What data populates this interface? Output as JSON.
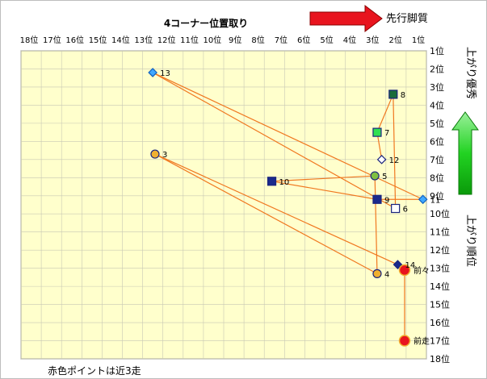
{
  "chart_data": {
    "type": "scatter",
    "title": "4コーナー位置取り",
    "x_label": "先行脚質",
    "y_label": "上がり優秀",
    "y_label_lower": "上がり順位",
    "x_ticks": [
      "18位",
      "17位",
      "16位",
      "15位",
      "14位",
      "13位",
      "12位",
      "11位",
      "10位",
      "9位",
      "8位",
      "7位",
      "6位",
      "5位",
      "4位",
      "3位",
      "2位",
      "1位"
    ],
    "y_ticks": [
      "1位",
      "2位",
      "3位",
      "4位",
      "5位",
      "6位",
      "7位",
      "8位",
      "9位",
      "10位",
      "11位",
      "12位",
      "13位",
      "14位",
      "15位",
      "16位",
      "17位",
      "18位"
    ],
    "x_range": [
      18,
      1
    ],
    "y_range": [
      1,
      18
    ],
    "grid": true,
    "note": "赤色ポイントは近3走",
    "colors": {
      "plot_bg": "#ffffcc",
      "grid": "#c8c8b4",
      "line": "#f07820",
      "near3": "#e8141e",
      "arrow_red": "#e8141e",
      "arrow_green": "#20d020"
    },
    "points": [
      {
        "label": "13",
        "x": 12.6,
        "y": 2.2,
        "shape": "diamond",
        "fill": "#40a8ff",
        "stroke": "#1060c0"
      },
      {
        "label": "8",
        "x": 2.1,
        "y": 3.4,
        "shape": "square",
        "fill": "#1a6b3a",
        "stroke": "#1a237e"
      },
      {
        "label": "7",
        "x": 2.8,
        "y": 5.5,
        "shape": "square",
        "fill": "#30e050",
        "stroke": "#1a237e"
      },
      {
        "label": "3",
        "x": 12.5,
        "y": 6.7,
        "shape": "circle",
        "fill": "#f0b030",
        "stroke": "#1a237e"
      },
      {
        "label": "12",
        "x": 2.6,
        "y": 7.0,
        "shape": "diamond",
        "fill": "#ffffff",
        "stroke": "#1a237e"
      },
      {
        "label": "10",
        "x": 7.4,
        "y": 8.2,
        "shape": "square",
        "fill": "#1a2a8c",
        "stroke": "#1a237e"
      },
      {
        "label": "5",
        "x": 2.9,
        "y": 7.9,
        "shape": "circle",
        "fill": "#80c040",
        "stroke": "#1a237e"
      },
      {
        "label": "9",
        "x": 2.8,
        "y": 9.2,
        "shape": "square",
        "fill": "#1a2a8c",
        "stroke": "#1a237e"
      },
      {
        "label": "11",
        "x": 0.8,
        "y": 9.2,
        "shape": "diamond",
        "fill": "#40a8ff",
        "stroke": "#1060c0"
      },
      {
        "label": "6",
        "x": 2.0,
        "y": 9.7,
        "shape": "square",
        "fill": "#ffffff",
        "stroke": "#1a237e"
      },
      {
        "label": "14",
        "x": 1.9,
        "y": 12.8,
        "shape": "diamond",
        "fill": "#1a2a8c",
        "stroke": "#1a237e"
      },
      {
        "label": "4",
        "x": 2.8,
        "y": 13.3,
        "shape": "circle",
        "fill": "#f0b030",
        "stroke": "#1a237e"
      },
      {
        "label": "前々",
        "x": 1.6,
        "y": 13.1,
        "shape": "circle-big",
        "fill": "#e8141e",
        "stroke": "#f0b030"
      },
      {
        "label": "前走",
        "x": 1.6,
        "y": 17.0,
        "shape": "circle-big",
        "fill": "#e8141e",
        "stroke": "#f0b030"
      }
    ],
    "path": [
      "前走",
      "前々",
      "14",
      "3",
      "4",
      "5",
      "10",
      "9",
      "11",
      "13",
      "6",
      "8",
      "7",
      "12"
    ]
  }
}
